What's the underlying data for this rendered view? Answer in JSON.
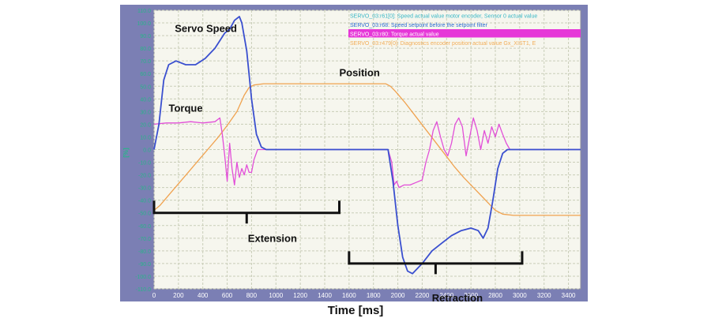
{
  "colors": {
    "frame": "#7b7fb4",
    "plot_bg": "#f6f6ee",
    "grid": "#c9cdb8",
    "tick_text": "#2ab38a",
    "speed": "#3a4fcf",
    "torque": "#e24fd8",
    "position": "#f0a24f",
    "legend_1": "#38b7c6",
    "legend_2": "#2c6dd0",
    "legend_3_bg": "#e637d8",
    "legend_4": "#f2ad57"
  },
  "chart_data": {
    "type": "line",
    "xlabel": "Time [ms]",
    "ylabel": "[%]",
    "xlim": [
      0,
      3500
    ],
    "ylim": [
      -110,
      110
    ],
    "x_ticks": [
      0,
      200,
      400,
      600,
      800,
      1000,
      1200,
      1400,
      1600,
      1800,
      2000,
      2200,
      2400,
      2600,
      2800,
      3000,
      3200,
      3400
    ],
    "y_ticks": [
      110,
      100,
      90,
      80,
      70,
      60,
      50,
      40,
      30,
      20,
      10,
      0,
      -10,
      -20,
      -30,
      -40,
      -50,
      -60,
      -70,
      -80,
      -90,
      -100,
      -110
    ],
    "grid": true,
    "legend_position": "top-right",
    "legend": [
      "SERVO_03:r61[0]: Speed actual value motor encoder, Sensor 0 actual value",
      "SERVO_03:r68: Speed setpoint before the setpoint filter",
      "SERVO_03:r80: Torque actual value",
      "SERVO_03:r479[0]: Diagnostics encoder position actual value Gx_XIST1, E"
    ],
    "series": [
      {
        "name": "Servo Speed",
        "x": [
          0,
          40,
          80,
          120,
          180,
          260,
          340,
          420,
          500,
          580,
          620,
          660,
          700,
          720,
          760,
          800,
          840,
          880,
          920,
          960,
          1000,
          1920,
          1960,
          2000,
          2040,
          2080,
          2120,
          2200,
          2280,
          2360,
          2440,
          2520,
          2600,
          2660,
          2700,
          2740,
          2780,
          2820,
          2860,
          2900,
          2950,
          3000,
          3500
        ],
        "values": [
          0,
          20,
          55,
          67,
          70,
          67,
          67,
          72,
          80,
          92,
          95,
          102,
          105,
          100,
          78,
          40,
          12,
          2,
          0,
          0,
          0,
          0,
          -25,
          -60,
          -85,
          -96,
          -98,
          -90,
          -80,
          -74,
          -68,
          -64,
          -62,
          -64,
          -70,
          -62,
          -40,
          -15,
          -3,
          0,
          0,
          0,
          0
        ]
      },
      {
        "name": "Torque",
        "x": [
          0,
          100,
          200,
          300,
          400,
          500,
          540,
          560,
          580,
          600,
          620,
          640,
          660,
          680,
          700,
          720,
          740,
          760,
          780,
          800,
          820,
          850,
          1000,
          1920,
          1950,
          1970,
          1990,
          2010,
          2050,
          2100,
          2150,
          2200,
          2230,
          2260,
          2290,
          2320,
          2350,
          2380,
          2410,
          2440,
          2470,
          2500,
          2530,
          2560,
          2590,
          2620,
          2650,
          2680,
          2710,
          2740,
          2770,
          2800,
          2830,
          2860,
          2890,
          2920,
          3000,
          3500
        ],
        "values": [
          20,
          21,
          21,
          22,
          21,
          22,
          25,
          12,
          -5,
          -25,
          5,
          -15,
          -28,
          -10,
          -22,
          -15,
          -20,
          -12,
          -18,
          -18,
          -8,
          0,
          0,
          0,
          -10,
          -28,
          -25,
          -30,
          -28,
          -28,
          -26,
          -24,
          -10,
          0,
          15,
          22,
          10,
          0,
          -5,
          5,
          20,
          25,
          18,
          -5,
          10,
          25,
          15,
          0,
          15,
          5,
          18,
          10,
          20,
          12,
          5,
          0,
          0,
          0
        ]
      },
      {
        "name": "Position",
        "x": [
          0,
          50,
          120,
          200,
          280,
          360,
          440,
          520,
          600,
          680,
          740,
          780,
          820,
          900,
          1000,
          1400,
          1800,
          1900,
          1940,
          1980,
          2060,
          2140,
          2220,
          2300,
          2380,
          2460,
          2540,
          2620,
          2700,
          2760,
          2800,
          2860,
          2950,
          3000,
          3500
        ],
        "values": [
          -48,
          -44,
          -36,
          -27,
          -18,
          -9,
          0,
          9,
          19,
          30,
          43,
          49,
          51,
          52,
          52,
          52,
          52,
          52,
          50,
          46,
          37,
          27,
          17,
          7,
          -3,
          -13,
          -22,
          -30,
          -38,
          -44,
          -48,
          -51,
          -52,
          -52,
          -52
        ]
      }
    ],
    "annotations": [
      {
        "text": "Servo Speed",
        "x": 170,
        "y": 93
      },
      {
        "text": "Position",
        "x": 1520,
        "y": 58
      },
      {
        "text": "Torque",
        "x": 120,
        "y": 30
      },
      {
        "text": "Extension",
        "x": 770,
        "y": -73
      },
      {
        "text": "Retraction",
        "x": 2280,
        "y": -120
      }
    ],
    "brackets": [
      {
        "name": "extension-bracket",
        "x_start": 0,
        "x_end": 1520,
        "y": -50
      },
      {
        "name": "retraction-bracket",
        "x_start": 1600,
        "x_end": 3020,
        "y": -90
      }
    ]
  }
}
